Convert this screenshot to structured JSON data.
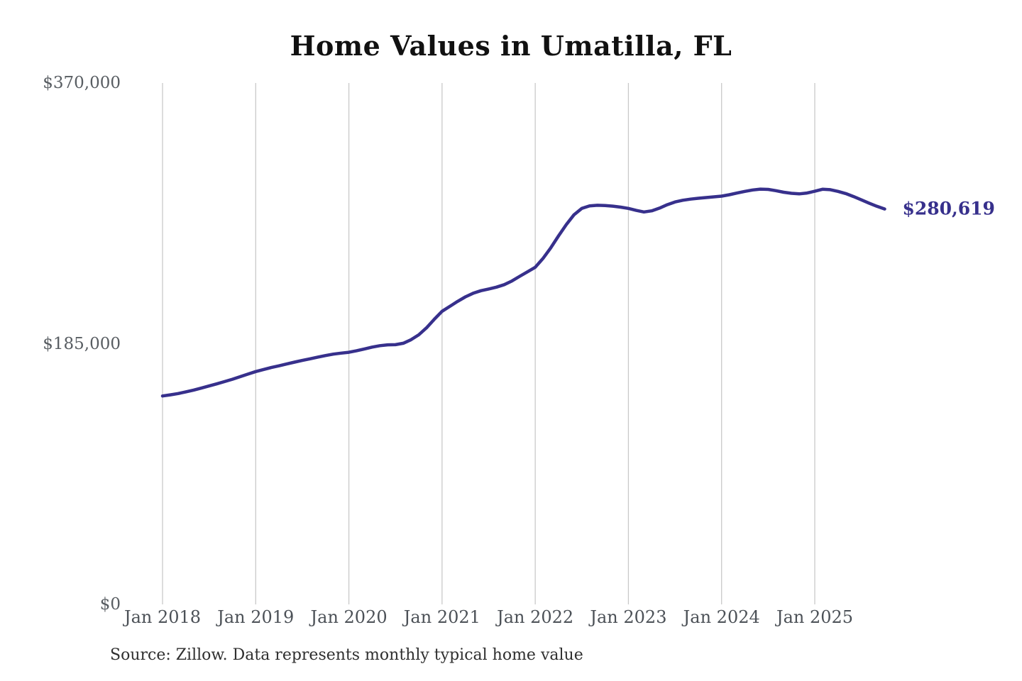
{
  "page": {
    "background": "#ffffff"
  },
  "chart": {
    "title": "Home Values in Umatilla, FL",
    "end_label": "$280,619",
    "source_note": "Source: Zillow. Data represents monthly typical home value"
  },
  "chart_data": {
    "type": "line",
    "title": "Home Values in Umatilla, FL",
    "xlabel": "",
    "ylabel": "",
    "ylim": [
      0,
      370000
    ],
    "grid": "vertical-only",
    "legend": "none",
    "line_color": "#37308c",
    "gridline_color": "#c9c9c9",
    "tick_label_color": "#4c5157",
    "last_value": 280619,
    "last_point_label": "$280,619",
    "y_ticks": [
      {
        "label": "$370,000",
        "value": 370000
      },
      {
        "label": "$185,000",
        "value": 185000
      },
      {
        "label": "$0",
        "value": 0
      }
    ],
    "x_ticks": [
      {
        "label": "Jan 2018"
      },
      {
        "label": "Jan 2019"
      },
      {
        "label": "Jan 2020"
      },
      {
        "label": "Jan 2021"
      },
      {
        "label": "Jan 2022"
      },
      {
        "label": "Jan 2023"
      },
      {
        "label": "Jan 2024"
      },
      {
        "label": "Jan 2025"
      }
    ],
    "series": [
      {
        "name": "Monthly typical home value",
        "frequency": "monthly",
        "x": [
          "2018-01",
          "2018-02",
          "2018-03",
          "2018-04",
          "2018-05",
          "2018-06",
          "2018-07",
          "2018-08",
          "2018-09",
          "2018-10",
          "2018-11",
          "2018-12",
          "2019-01",
          "2019-02",
          "2019-03",
          "2019-04",
          "2019-05",
          "2019-06",
          "2019-07",
          "2019-08",
          "2019-09",
          "2019-10",
          "2019-11",
          "2019-12",
          "2020-01",
          "2020-02",
          "2020-03",
          "2020-04",
          "2020-05",
          "2020-06",
          "2020-07",
          "2020-08",
          "2020-09",
          "2020-10",
          "2020-11",
          "2020-12",
          "2021-01",
          "2021-02",
          "2021-03",
          "2021-04",
          "2021-05",
          "2021-06",
          "2021-07",
          "2021-08",
          "2021-09",
          "2021-10",
          "2021-11",
          "2021-12",
          "2022-01",
          "2022-02",
          "2022-03",
          "2022-04",
          "2022-05",
          "2022-06",
          "2022-07",
          "2022-08",
          "2022-09",
          "2022-10",
          "2022-11",
          "2022-12",
          "2023-01",
          "2023-02",
          "2023-03",
          "2023-04",
          "2023-05",
          "2023-06",
          "2023-07",
          "2023-08",
          "2023-09",
          "2023-10",
          "2023-11",
          "2023-12",
          "2024-01",
          "2024-02",
          "2024-03",
          "2024-04",
          "2024-05",
          "2024-06",
          "2024-07",
          "2024-08",
          "2024-09",
          "2024-10",
          "2024-11",
          "2024-12",
          "2025-01",
          "2025-02",
          "2025-03",
          "2025-04",
          "2025-05",
          "2025-06",
          "2025-07",
          "2025-08",
          "2025-09",
          "2025-10"
        ],
        "values": [
          147900,
          148700,
          149600,
          150800,
          152100,
          153500,
          155000,
          156500,
          158100,
          159800,
          161600,
          163400,
          165200,
          166700,
          168100,
          169300,
          170600,
          171900,
          173100,
          174300,
          175500,
          176600,
          177600,
          178300,
          178900,
          180000,
          181300,
          182600,
          183600,
          184200,
          184300,
          185300,
          187800,
          191300,
          196300,
          202300,
          208000,
          211500,
          215000,
          218200,
          220800,
          222600,
          223800,
          225100,
          226900,
          229500,
          232800,
          236000,
          239200,
          245500,
          253000,
          261500,
          269500,
          276500,
          281000,
          282800,
          283200,
          283000,
          282600,
          281900,
          281000,
          279600,
          278500,
          279300,
          281200,
          283600,
          285600,
          286800,
          287600,
          288200,
          288700,
          289200,
          289700,
          290700,
          291900,
          293100,
          294100,
          294700,
          294500,
          293600,
          292500,
          291700,
          291300,
          291900,
          293200,
          294600,
          294300,
          293100,
          291500,
          289400,
          287100,
          284700,
          282500,
          280619
        ]
      }
    ]
  }
}
